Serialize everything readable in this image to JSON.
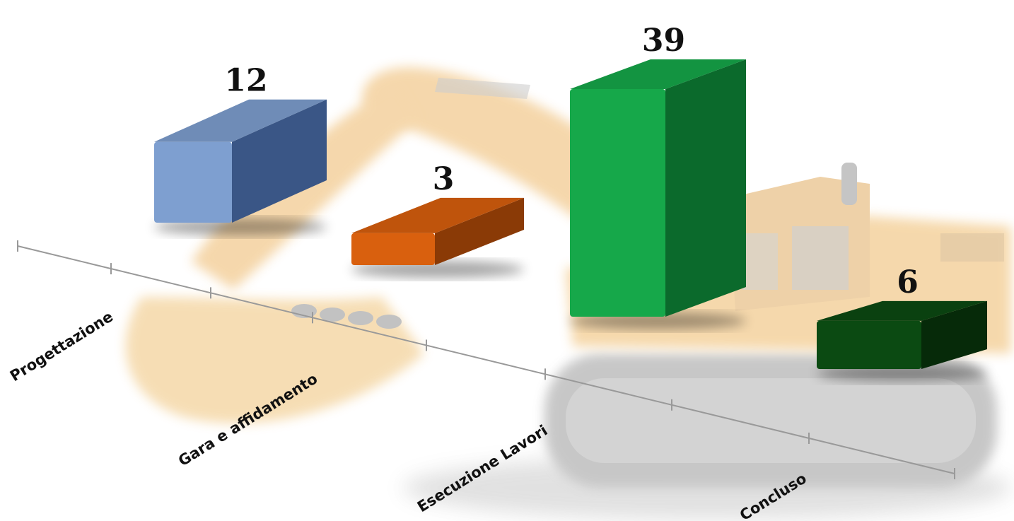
{
  "chart_data": {
    "type": "bar",
    "categories": [
      "Progettazione",
      "Gara e affidamento",
      "Esecuzione Lavori",
      "Concluso"
    ],
    "values": [
      12,
      3,
      39,
      6
    ],
    "colors": [
      "#7E9FD0",
      "#D9600E",
      "#16A84A",
      "#0B4A12"
    ],
    "title": "",
    "xlabel": "",
    "ylabel": "",
    "ylim": [
      0,
      39
    ],
    "grid": false,
    "legend": "none",
    "background_picture": "excavator-watermark"
  }
}
